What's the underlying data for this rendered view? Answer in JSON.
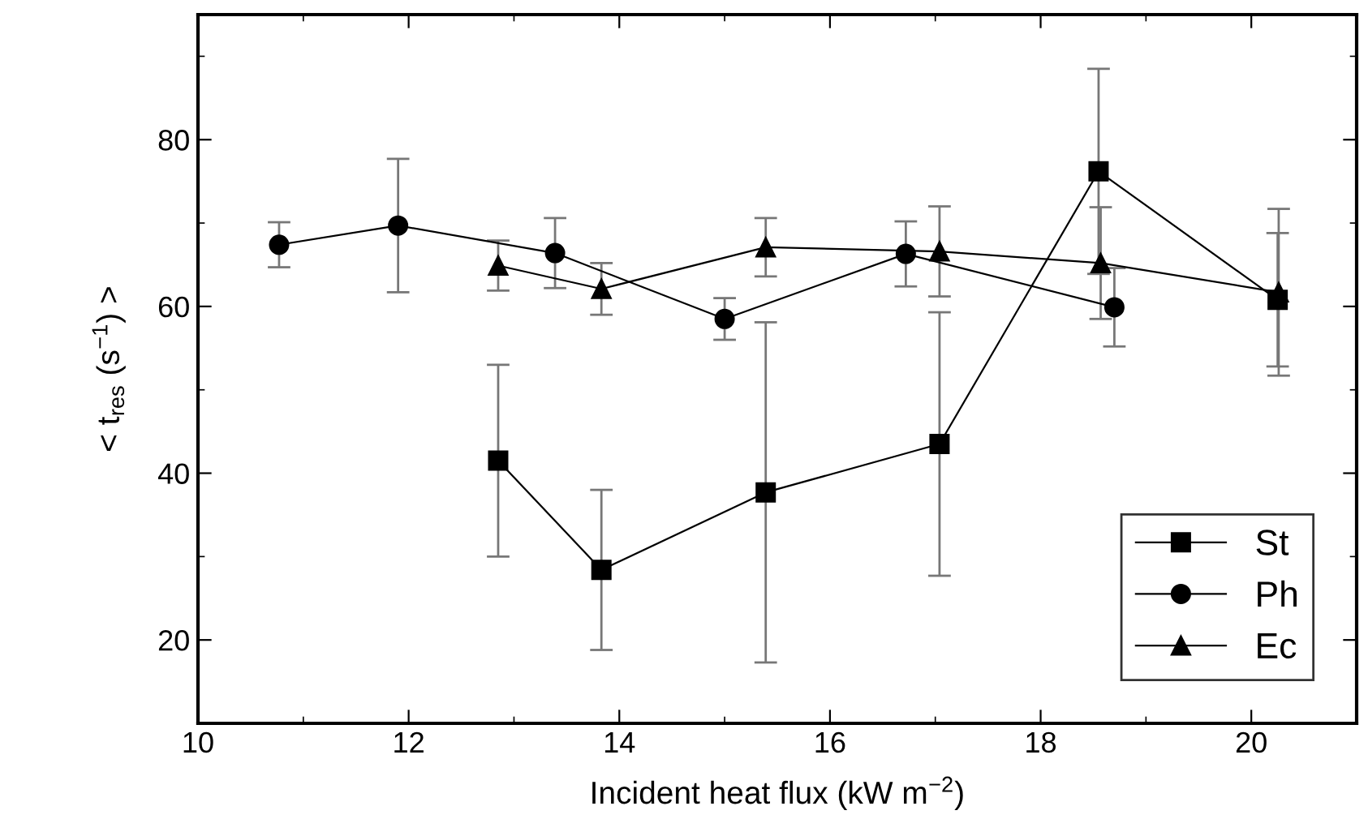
{
  "chart_data": {
    "type": "line",
    "xlabel": "Incident heat flux (kW m$^{−2}$)",
    "ylabel": "< t$_{res}$ (s$^{−1}$) >",
    "xlim": [
      10,
      21
    ],
    "xticks": [
      10,
      12,
      14,
      16,
      18,
      20
    ],
    "ylim": [
      10,
      95
    ],
    "yticks": [
      20,
      40,
      60,
      80
    ],
    "grid": false,
    "legend": "bottom right",
    "series": [
      {
        "name": "St",
        "color": "#000000",
        "marker": "square",
        "x": [
          12.85,
          13.83,
          15.39,
          17.04,
          18.55,
          20.25
        ],
        "values": [
          41.5,
          28.4,
          37.7,
          43.5,
          76.2,
          60.8
        ],
        "errors": [
          11.5,
          9.6,
          20.4,
          15.8,
          12.3,
          8
        ]
      },
      {
        "name": "Ph",
        "color": "#000000",
        "marker": "circle",
        "x": [
          10.77,
          11.9,
          13.39,
          15.0,
          16.72,
          18.7
        ],
        "values": [
          67.4,
          69.7,
          66.4,
          58.5,
          66.3,
          59.9
        ],
        "errors": [
          2.7,
          8,
          4.2,
          2.5,
          3.9,
          4.7
        ]
      },
      {
        "name": "Ec",
        "color": "#000000",
        "marker": "triangle",
        "x": [
          12.85,
          13.83,
          15.39,
          17.04,
          18.57,
          20.26
        ],
        "values": [
          64.9,
          62.1,
          67.1,
          66.6,
          65.2,
          61.7
        ],
        "errors": [
          3,
          3.1,
          3.5,
          5.4,
          6.7,
          10
        ]
      }
    ]
  }
}
